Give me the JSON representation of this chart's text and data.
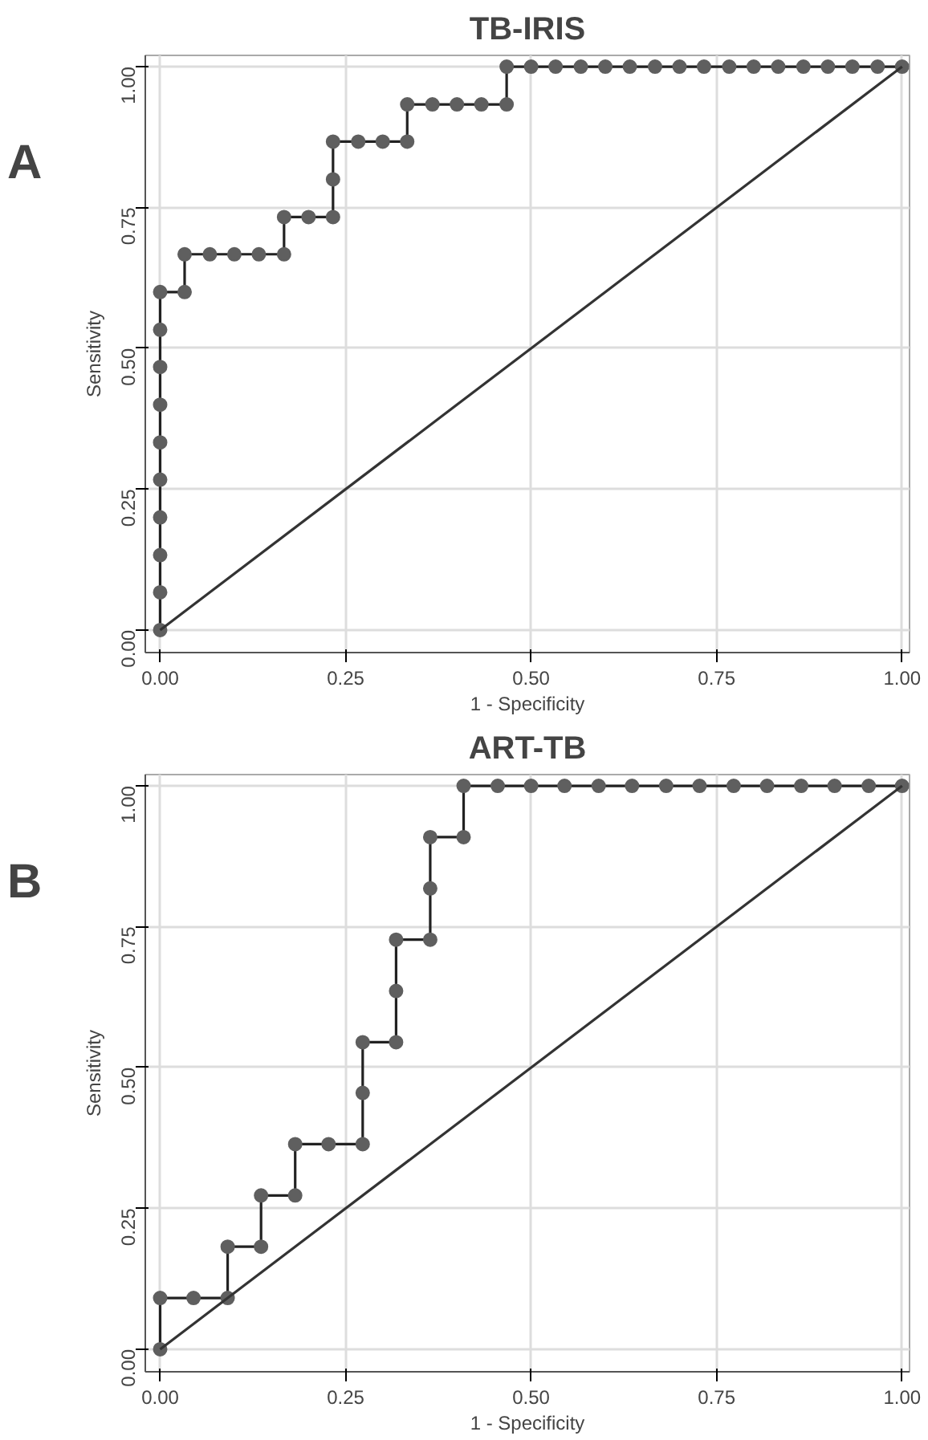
{
  "chart_data": [
    {
      "type": "line",
      "title": "TB-IRIS",
      "xlabel": "1 - Specificity",
      "ylabel": "Sensitivity",
      "annotations": [
        "A"
      ],
      "xlim": [
        -0.02,
        1.01
      ],
      "ylim": [
        -0.04,
        1.02
      ],
      "xticks": [
        {
          "value": 0,
          "label": "0.00"
        },
        {
          "value": 0.25,
          "label": "0.25"
        },
        {
          "value": 0.5,
          "label": "0.50"
        },
        {
          "value": 0.75,
          "label": "0.75"
        },
        {
          "value": 1,
          "label": "1.00"
        }
      ],
      "yticks": [
        {
          "value": 0,
          "label": "0.00"
        },
        {
          "value": 0.25,
          "label": "0.25"
        },
        {
          "value": 0.5,
          "label": "0.50"
        },
        {
          "value": 0.75,
          "label": "0.75"
        },
        {
          "value": 1,
          "label": "1.00"
        }
      ],
      "grid": true,
      "marker": "circle",
      "line_style": "solid",
      "series": [
        {
          "color": "#5f5f5f",
          "x": [
            0,
            0,
            0,
            0,
            0,
            0,
            0,
            0,
            0,
            0,
            0.033,
            0.033,
            0.067,
            0.1,
            0.133,
            0.167,
            0.167,
            0.2,
            0.233,
            0.233,
            0.233,
            0.267,
            0.3,
            0.333,
            0.333,
            0.367,
            0.4,
            0.433,
            0.467,
            0.467,
            0.5,
            0.533,
            0.567,
            0.6,
            0.633,
            0.667,
            0.7,
            0.733,
            0.767,
            0.8,
            0.833,
            0.867,
            0.9,
            0.933,
            0.967,
            1
          ],
          "values": [
            0,
            0.067,
            0.133,
            0.2,
            0.267,
            0.333,
            0.4,
            0.467,
            0.533,
            0.6,
            0.6,
            0.667,
            0.667,
            0.667,
            0.667,
            0.667,
            0.733,
            0.733,
            0.733,
            0.8,
            0.867,
            0.867,
            0.867,
            0.867,
            0.933,
            0.933,
            0.933,
            0.933,
            0.933,
            1,
            1,
            1,
            1,
            1,
            1,
            1,
            1,
            1,
            1,
            1,
            1,
            1,
            1,
            1,
            1,
            1
          ]
        },
        {
          "color": "#333333",
          "marker": "none",
          "x": [
            0,
            1
          ],
          "values": [
            0,
            1
          ]
        }
      ]
    },
    {
      "type": "line",
      "title": "ART-TB",
      "xlabel": "1 - Specificity",
      "ylabel": "Sensitivity",
      "annotations": [
        "B"
      ],
      "xlim": [
        -0.02,
        1.01
      ],
      "ylim": [
        -0.04,
        1.02
      ],
      "xticks": [
        {
          "value": 0,
          "label": "0.00"
        },
        {
          "value": 0.25,
          "label": "0.25"
        },
        {
          "value": 0.5,
          "label": "0.50"
        },
        {
          "value": 0.75,
          "label": "0.75"
        },
        {
          "value": 1,
          "label": "1.00"
        }
      ],
      "yticks": [
        {
          "value": 0,
          "label": "0.00"
        },
        {
          "value": 0.25,
          "label": "0.25"
        },
        {
          "value": 0.5,
          "label": "0.50"
        },
        {
          "value": 0.75,
          "label": "0.75"
        },
        {
          "value": 1,
          "label": "1.00"
        }
      ],
      "grid": true,
      "marker": "circle",
      "line_style": "solid",
      "series": [
        {
          "color": "#5f5f5f",
          "x": [
            0,
            0,
            0.045,
            0.091,
            0.091,
            0.136,
            0.136,
            0.182,
            0.182,
            0.227,
            0.273,
            0.273,
            0.273,
            0.318,
            0.318,
            0.318,
            0.364,
            0.364,
            0.364,
            0.409,
            0.409,
            0.455,
            0.5,
            0.545,
            0.591,
            0.636,
            0.682,
            0.727,
            0.773,
            0.818,
            0.864,
            0.909,
            0.955,
            1
          ],
          "values": [
            0,
            0.091,
            0.091,
            0.091,
            0.182,
            0.182,
            0.273,
            0.273,
            0.364,
            0.364,
            0.364,
            0.455,
            0.545,
            0.545,
            0.636,
            0.727,
            0.727,
            0.818,
            0.909,
            0.909,
            1,
            1,
            1,
            1,
            1,
            1,
            1,
            1,
            1,
            1,
            1,
            1,
            1,
            1
          ]
        },
        {
          "color": "#333333",
          "marker": "none",
          "x": [
            0,
            1
          ],
          "values": [
            0,
            1
          ]
        }
      ]
    }
  ]
}
